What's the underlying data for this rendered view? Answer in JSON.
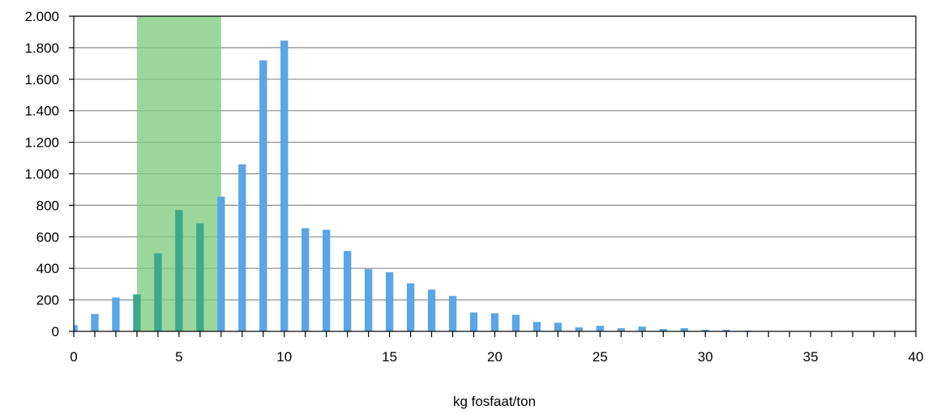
{
  "chart_data": {
    "type": "bar",
    "title": "",
    "xlabel": "kg fosfaat/ton",
    "ylabel": "",
    "xlim": [
      0,
      40
    ],
    "ylim": [
      0,
      2000
    ],
    "x_ticks": [
      0,
      5,
      10,
      15,
      20,
      25,
      30,
      35,
      40
    ],
    "x_tick_labels": [
      "0",
      "5",
      "10",
      "15",
      "20",
      "25",
      "30",
      "35",
      "40"
    ],
    "y_ticks": [
      0,
      200,
      400,
      600,
      800,
      1000,
      1200,
      1400,
      1600,
      1800,
      2000
    ],
    "y_tick_labels": [
      "0",
      "200",
      "400",
      "600",
      "800",
      "1.000",
      "1.200",
      "1.400",
      "1.600",
      "1.800",
      "2.000"
    ],
    "grid": true,
    "legend": "none",
    "highlight_range": {
      "x": [
        3,
        7
      ],
      "color": "#7fcc80"
    },
    "colors": {
      "bar": "#5aa5e6",
      "bar_in_range": "#3fa88a",
      "grid": "#8c8c8c"
    },
    "x": [
      0,
      1,
      2,
      3,
      4,
      5,
      6,
      7,
      8,
      9,
      10,
      11,
      12,
      13,
      14,
      15,
      16,
      17,
      18,
      19,
      20,
      21,
      22,
      23,
      24,
      25,
      26,
      27,
      28,
      29,
      30,
      31,
      32,
      33,
      34,
      35,
      36,
      37,
      38,
      39
    ],
    "values": [
      40,
      110,
      215,
      235,
      495,
      770,
      685,
      855,
      1060,
      1720,
      1845,
      655,
      645,
      510,
      395,
      375,
      305,
      265,
      225,
      120,
      115,
      105,
      60,
      55,
      25,
      35,
      20,
      30,
      15,
      20,
      10,
      10,
      5,
      3,
      2,
      2,
      1,
      1,
      1,
      1
    ]
  }
}
